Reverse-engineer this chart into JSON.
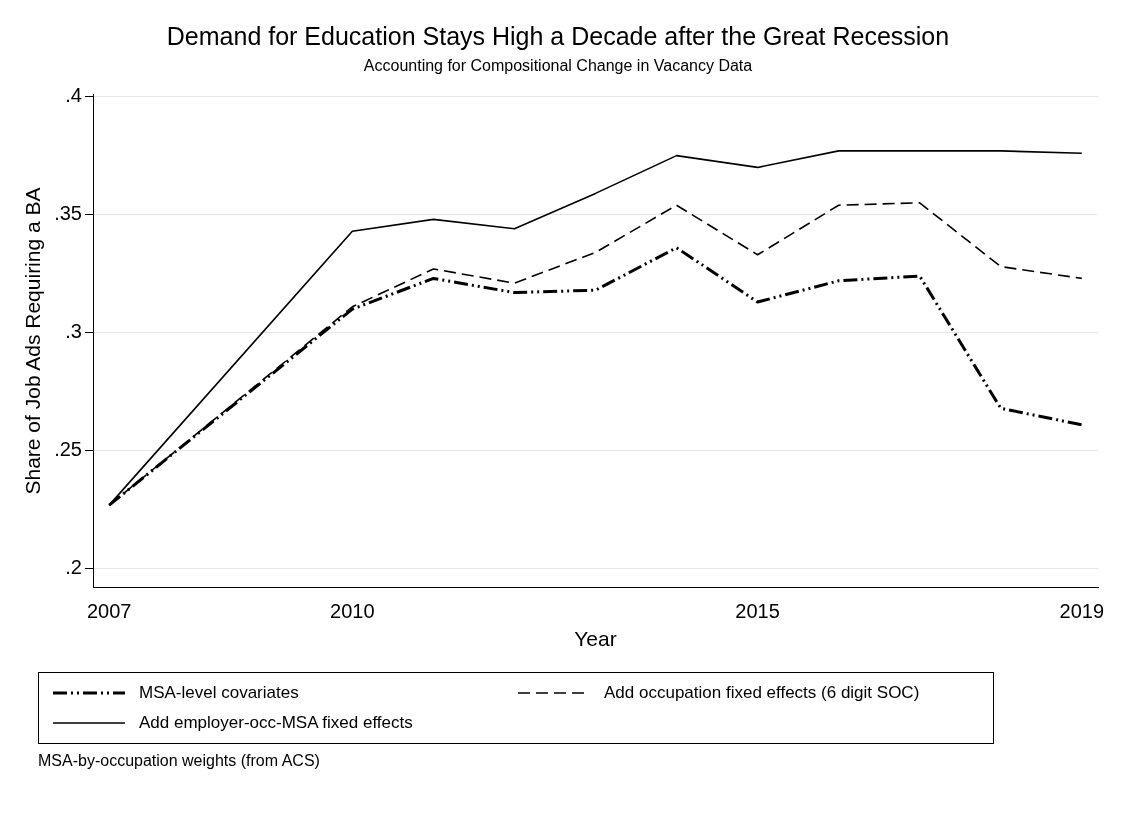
{
  "chart_data": {
    "type": "line",
    "title": "Demand for Education Stays High a Decade after the Great Recession",
    "subtitle": "Accounting for Compositional Change in Vacancy Data",
    "xlabel": "Year",
    "ylabel": "Share of Job Ads Requiring a BA",
    "x": [
      2007,
      2010,
      2011,
      2012,
      2013,
      2014,
      2015,
      2016,
      2017,
      2018,
      2019
    ],
    "series": [
      {
        "name": "MSA-level covariates",
        "color": "#000000",
        "line_style": "dashdot",
        "values": [
          0.227,
          0.31,
          0.323,
          0.317,
          0.318,
          0.336,
          0.313,
          0.322,
          0.324,
          0.268,
          0.261
        ]
      },
      {
        "name": "Add occupation fixed effects (6 digit SOC)",
        "color": "#000000",
        "line_style": "dashed",
        "values": [
          0.227,
          0.311,
          0.327,
          0.321,
          0.334,
          0.354,
          0.333,
          0.354,
          0.355,
          0.328,
          0.323
        ]
      },
      {
        "name": "Add employer-occ-MSA fixed effects",
        "color": "#000000",
        "line_style": "solid",
        "values": [
          0.227,
          0.343,
          0.348,
          0.344,
          0.359,
          0.375,
          0.37,
          0.377,
          0.377,
          0.377,
          0.376
        ]
      }
    ],
    "xlim": [
      2006.8,
      2019.2
    ],
    "xticks": [
      2007,
      2010,
      2015,
      2019
    ],
    "ylim": [
      0.192,
      0.401
    ],
    "yticks": [
      {
        "value": 0.2,
        "label": ".2"
      },
      {
        "value": 0.25,
        "label": ".25"
      },
      {
        "value": 0.3,
        "label": ".3"
      },
      {
        "value": 0.35,
        "label": ".35"
      },
      {
        "value": 0.4,
        "label": ".4"
      }
    ],
    "grid": "y",
    "legend": "bottom",
    "marker": "none",
    "annotations": [
      "MSA-by-occupation weights (from ACS)"
    ]
  }
}
